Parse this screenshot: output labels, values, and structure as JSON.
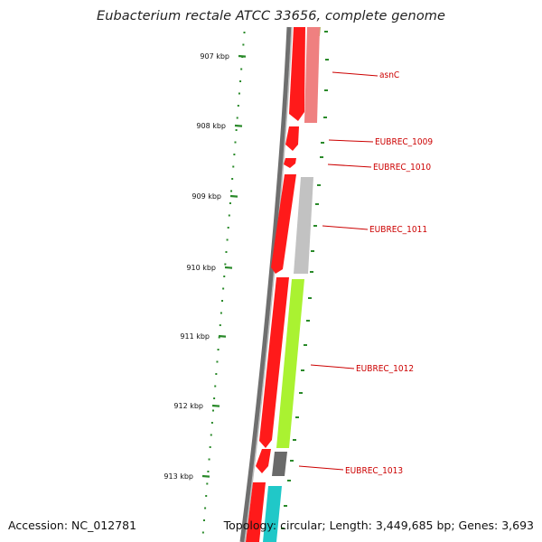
{
  "title": "Eubacterium rectale ATCC 33656, complete genome",
  "accession": "Accession: NC_012781",
  "topology": "Topology: circular; Length: 3,449,685 bp; Genes: 3,693",
  "colors": {
    "backbone": "#777777",
    "forward_gene": "#ff0000",
    "tick": "#2a8a2a",
    "label": "#cc0000",
    "gc_dots": "#2a8a2a"
  },
  "scale_ticks": [
    {
      "label": "907 kbp"
    },
    {
      "label": "908 kbp"
    },
    {
      "label": "909 kbp"
    },
    {
      "label": "910 kbp"
    },
    {
      "label": "911 kbp"
    },
    {
      "label": "912 kbp"
    },
    {
      "label": "913 kbp"
    }
  ],
  "gene_labels": [
    {
      "label": "asnC"
    },
    {
      "label": "EUBREC_1009"
    },
    {
      "label": "EUBREC_1010"
    },
    {
      "label": "EUBREC_1011"
    },
    {
      "label": "EUBREC_1012"
    },
    {
      "label": "EUBREC_1013"
    }
  ]
}
